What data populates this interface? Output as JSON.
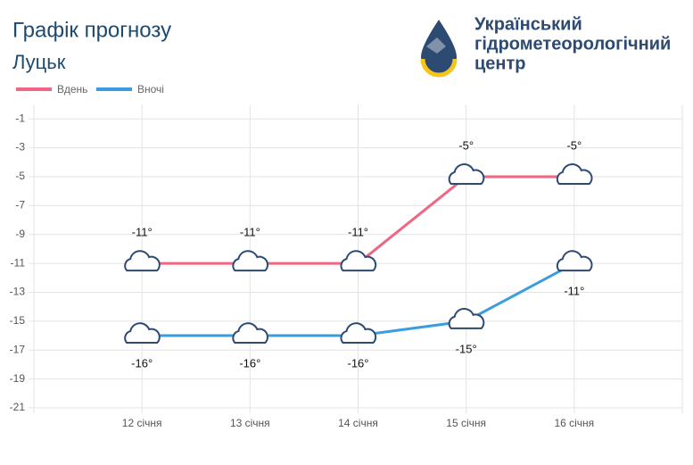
{
  "header": {
    "title": "Графік прогнозу",
    "subtitle": "Луцьк",
    "org": [
      "Український",
      "гідрометеорологічний",
      "центр"
    ]
  },
  "chart_data": {
    "type": "line",
    "categories": [
      "12 січня",
      "13 січня",
      "14 січня",
      "15 січня",
      "16 січня"
    ],
    "series": [
      {
        "name": "Вдень",
        "color": "#f06683",
        "values": [
          -11,
          -11,
          -11,
          -5,
          -5
        ],
        "value_labels": [
          "-11°",
          "-11°",
          "-11°",
          "-5°",
          "-5°"
        ]
      },
      {
        "name": "Вночі",
        "color": "#3a9de0",
        "values": [
          -16,
          -16,
          -16,
          -15,
          -11
        ],
        "value_labels": [
          "-16°",
          "-16°",
          "-16°",
          "-15°",
          "-11°"
        ]
      }
    ],
    "ylim": [
      -21,
      0
    ],
    "yticks": [
      -1,
      -3,
      -5,
      -7,
      -9,
      -11,
      -13,
      -15,
      -17,
      -19,
      -21
    ],
    "grid": true
  }
}
